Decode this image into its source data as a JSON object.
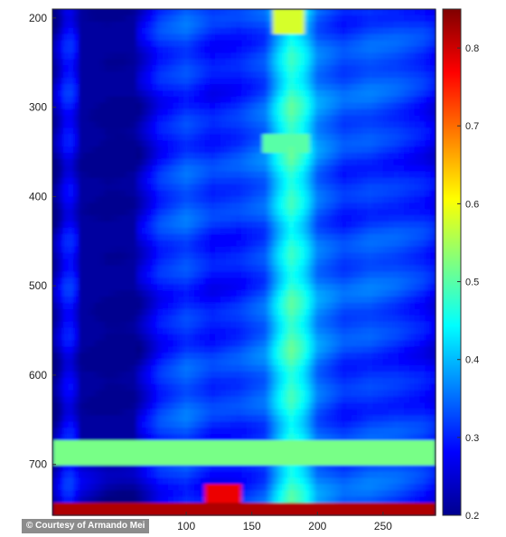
{
  "chart_data": {
    "type": "heatmap",
    "title": "",
    "xlabel": "",
    "ylabel": "",
    "xlim": [
      -2,
      290
    ],
    "ylim": [
      190,
      757
    ],
    "y_reversed": true,
    "xticks": [
      100,
      150,
      200,
      250
    ],
    "yticks": [
      200,
      300,
      400,
      500,
      600,
      700
    ],
    "colormap": "jet",
    "colorbar": {
      "range": [
        0.2,
        0.85
      ],
      "ticks": [
        0.2,
        0.3,
        0.4,
        0.5,
        0.6,
        0.7,
        0.8
      ]
    },
    "x_profile": {
      "x": [
        0,
        10,
        20,
        40,
        50,
        60,
        80,
        100,
        120,
        140,
        160,
        170,
        180,
        190,
        200,
        220,
        240,
        260,
        280,
        290
      ],
      "value": [
        0.22,
        0.3,
        0.24,
        0.21,
        0.21,
        0.22,
        0.3,
        0.33,
        0.3,
        0.31,
        0.34,
        0.42,
        0.48,
        0.44,
        0.36,
        0.32,
        0.33,
        0.32,
        0.3,
        0.28
      ]
    },
    "notable_regions": [
      {
        "x": [
          20,
          60
        ],
        "y": [
          190,
          700
        ],
        "value": 0.21
      },
      {
        "x": [
          165,
          190
        ],
        "y": [
          190,
          220
        ],
        "value": 0.58
      },
      {
        "x": [
          160,
          195
        ],
        "y": [
          330,
          350
        ],
        "value": 0.5
      },
      {
        "x": [
          0,
          290
        ],
        "y": [
          670,
          700
        ],
        "value": 0.52
      },
      {
        "x": [
          0,
          290
        ],
        "y": [
          740,
          757
        ],
        "value": 0.82
      },
      {
        "x": [
          115,
          140
        ],
        "y": [
          722,
          740
        ],
        "value": 0.78
      }
    ]
  },
  "credit": {
    "text": "© Courtesy of Armando Mei"
  }
}
